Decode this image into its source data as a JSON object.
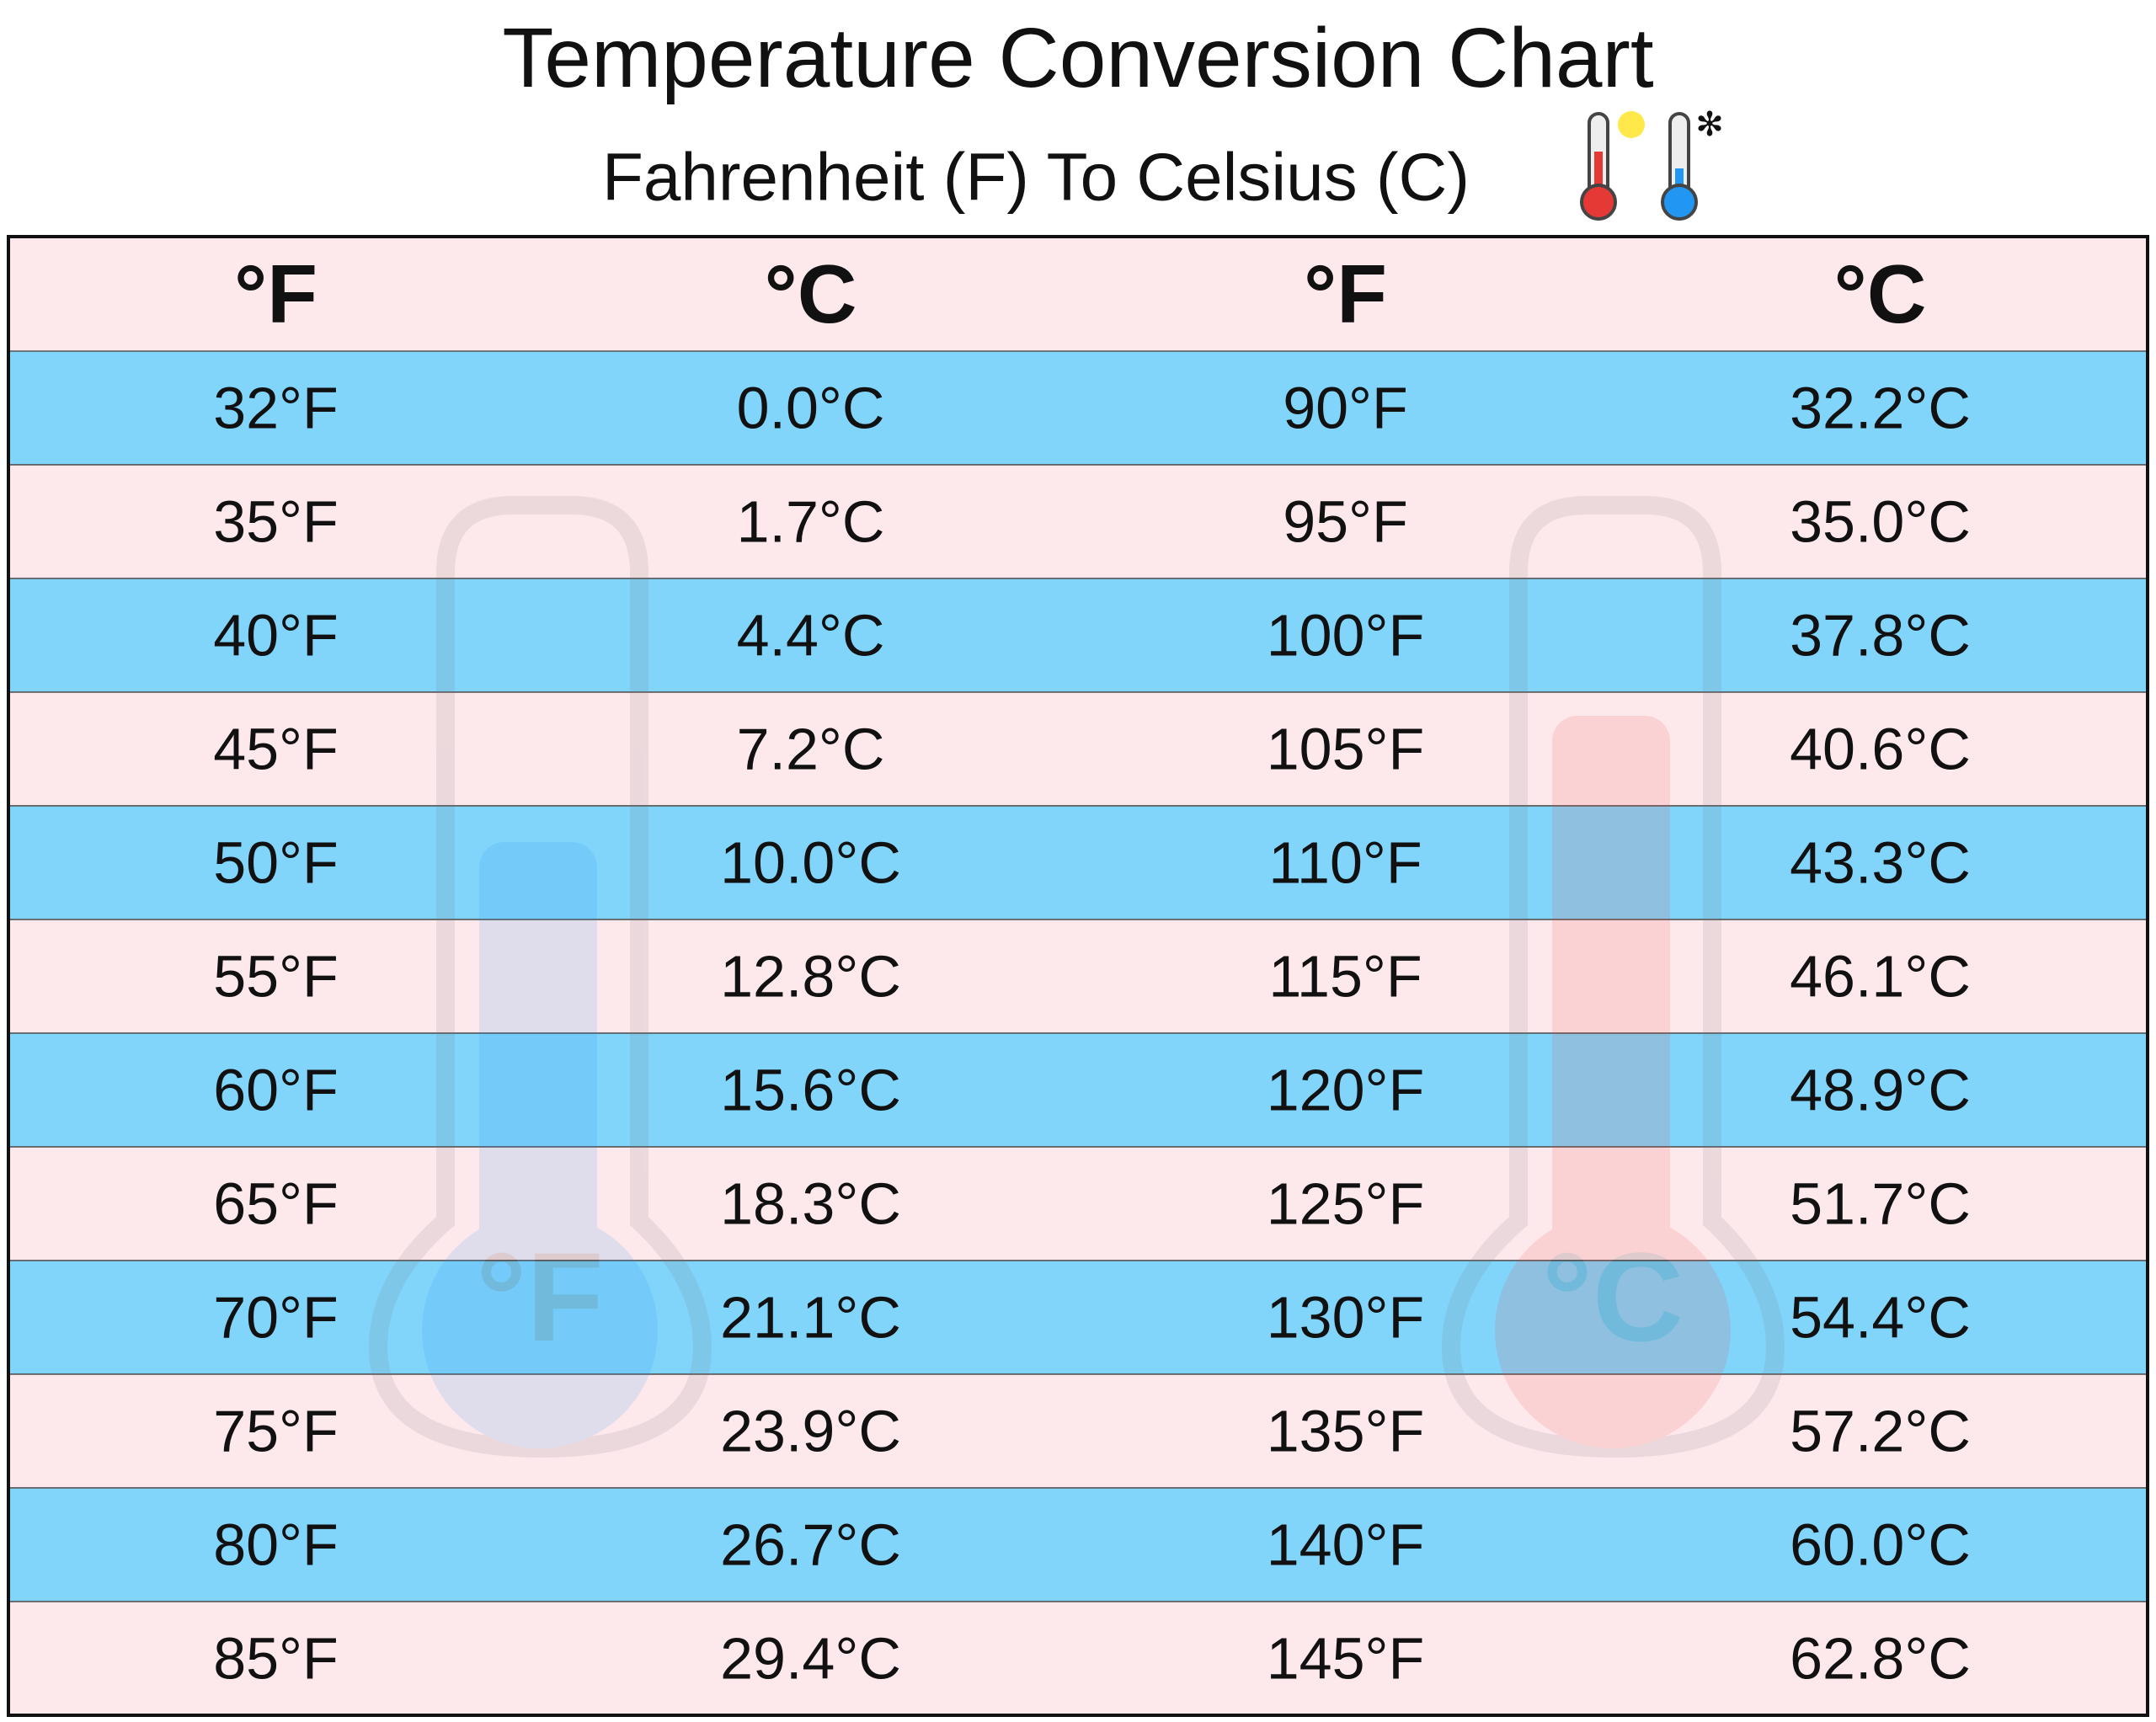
{
  "header": {
    "title": "Temperature Conversion Chart",
    "subtitle": "Fahrenheit (F) To Celsius (C)"
  },
  "watermark_labels": [
    "°F",
    "°C"
  ],
  "table": {
    "columns": [
      "°F",
      "°C",
      "°F",
      "°C"
    ],
    "rows": [
      [
        "32°F",
        "0.0°C",
        "90°F",
        "32.2°C"
      ],
      [
        "35°F",
        "1.7°C",
        "95°F",
        "35.0°C"
      ],
      [
        "40°F",
        "4.4°C",
        "100°F",
        "37.8°C"
      ],
      [
        "45°F",
        "7.2°C",
        "105°F",
        "40.6°C"
      ],
      [
        "50°F",
        "10.0°C",
        "110°F",
        "43.3°C"
      ],
      [
        "55°F",
        "12.8°C",
        "115°F",
        "46.1°C"
      ],
      [
        "60°F",
        "15.6°C",
        "120°F",
        "48.9°C"
      ],
      [
        "65°F",
        "18.3°C",
        "125°F",
        "51.7°C"
      ],
      [
        "70°F",
        "21.1°C",
        "130°F",
        "54.4°C"
      ],
      [
        "75°F",
        "23.9°C",
        "135°F",
        "57.2°C"
      ],
      [
        "80°F",
        "26.7°C",
        "140°F",
        "60.0°C"
      ],
      [
        "85°F",
        "29.4°C",
        "145°F",
        "62.8°C"
      ]
    ]
  }
}
